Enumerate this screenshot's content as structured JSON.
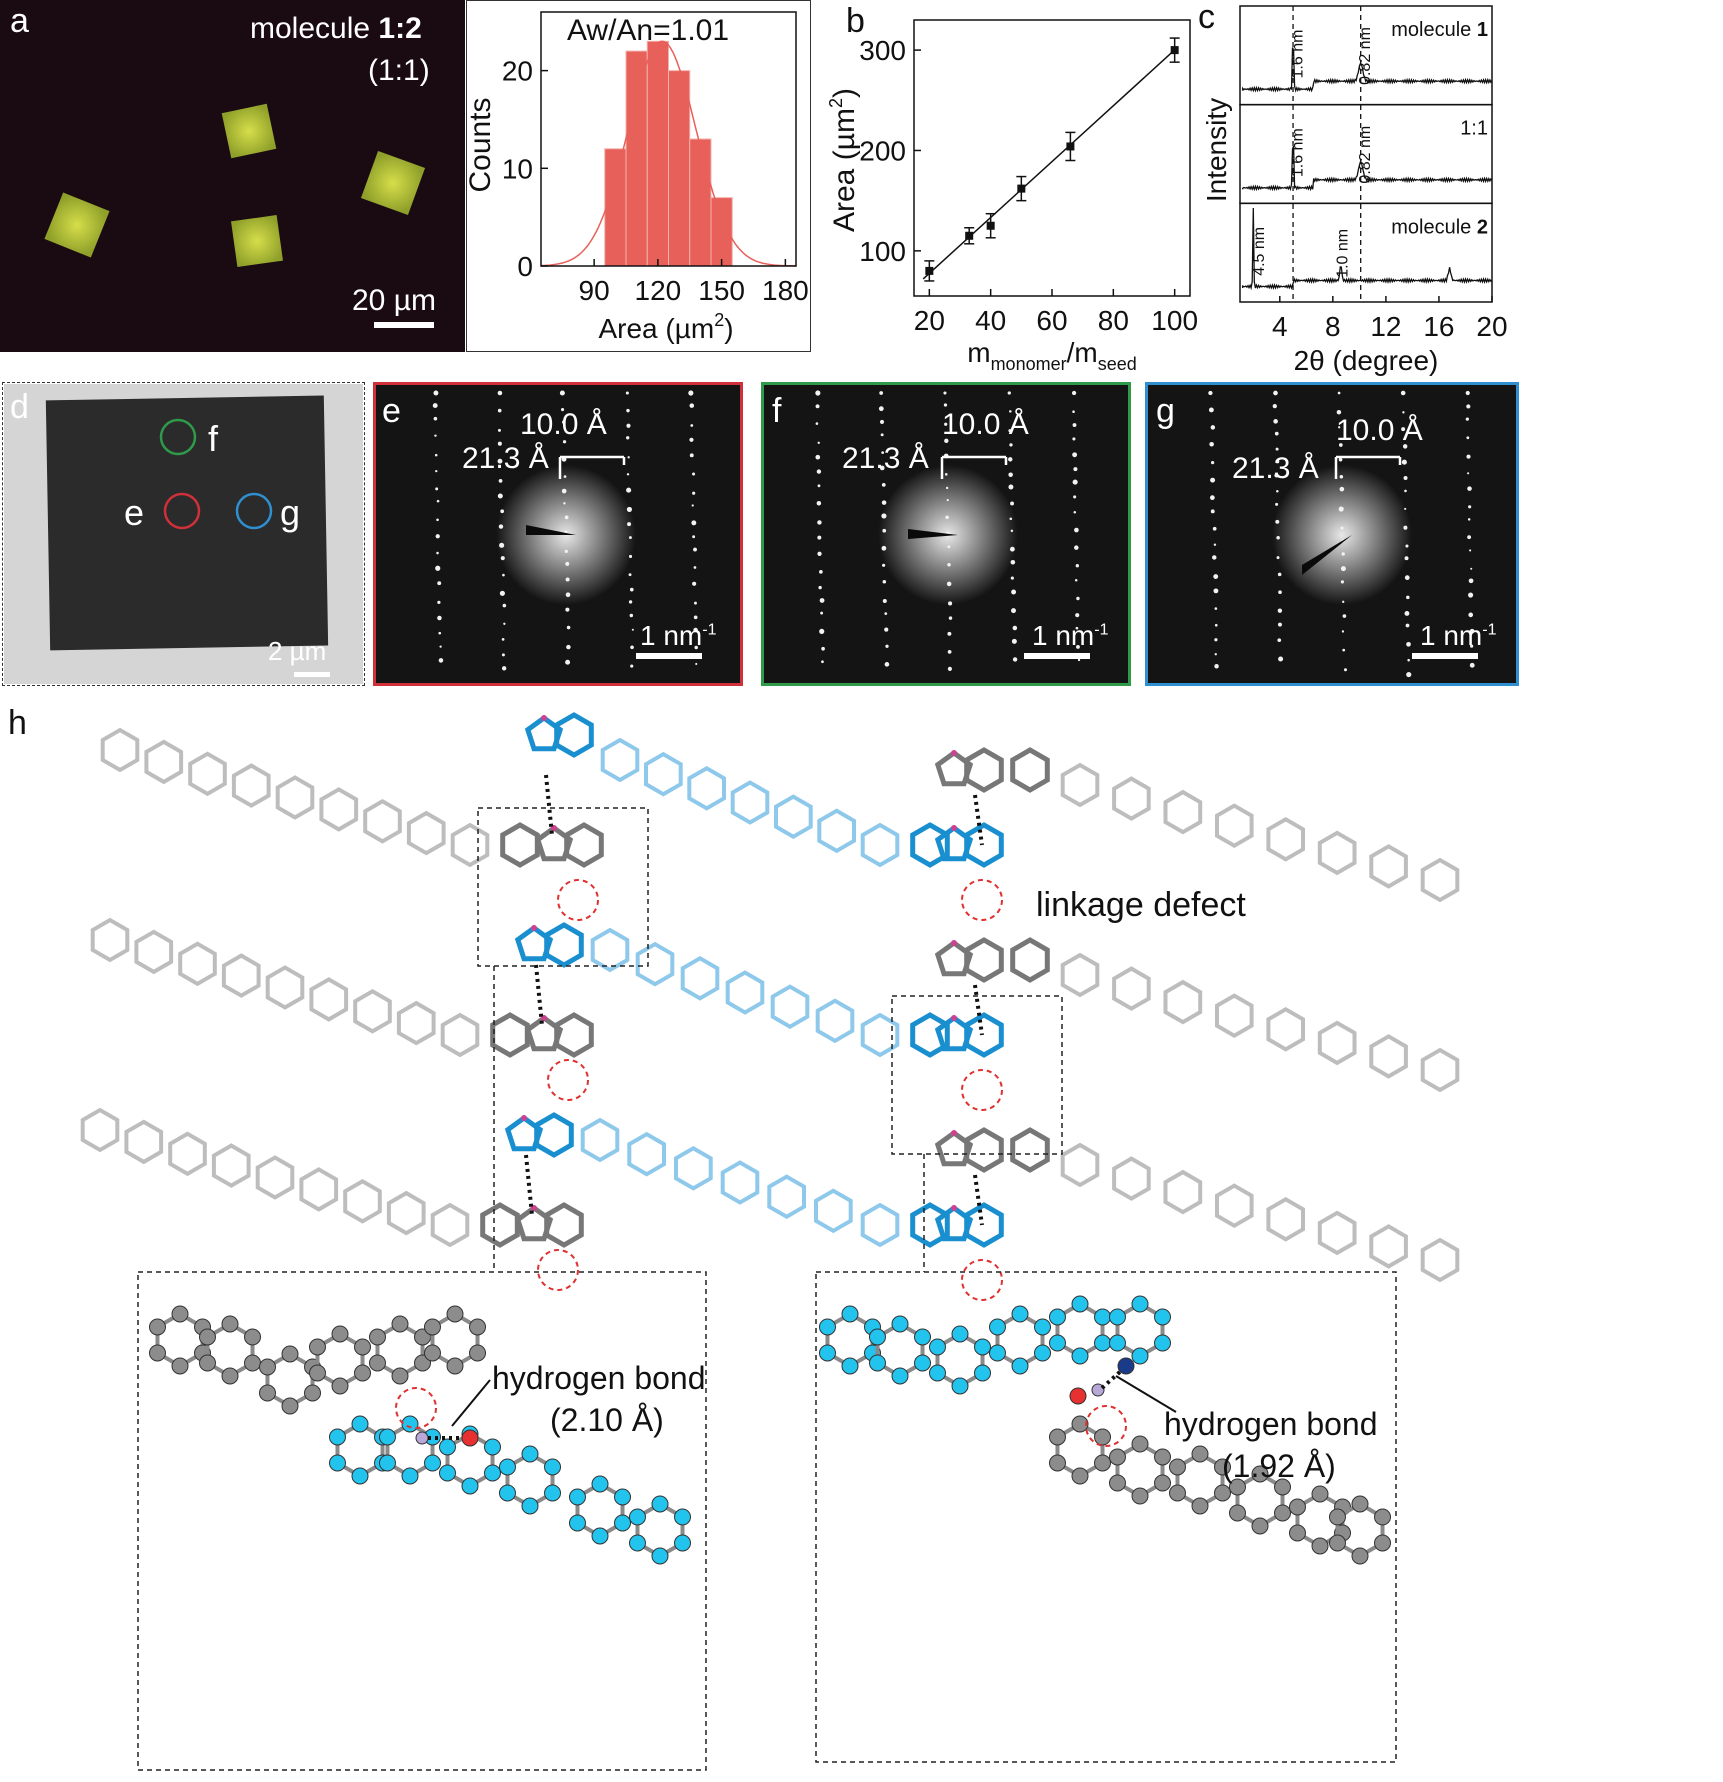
{
  "panels": {
    "a": {
      "letter": "a",
      "label_molecule": "molecule ",
      "label_ratio_bold": "1:2",
      "label_ratio": "(1:1)",
      "scalebar": "20 µm"
    },
    "b": {
      "letter": "b"
    },
    "c": {
      "letter": "c",
      "rows": [
        {
          "label": "molecule ",
          "label_bold": "1",
          "peaks": [
            "1.6 nm",
            "0.82 nm"
          ]
        },
        {
          "label": "1:1",
          "label_bold": "",
          "peaks": [
            "1.6 nm",
            "0.82 nm"
          ]
        },
        {
          "label": "molecule ",
          "label_bold": "2",
          "peaks": [
            "4.5 nm",
            "1.0 nm"
          ]
        }
      ]
    },
    "d": {
      "letter": "d",
      "scalebar": "2 µm",
      "circles": [
        "f",
        "e",
        "g"
      ]
    },
    "e": {
      "letter": "e",
      "d1": "10.0 Å",
      "d2": "21.3 Å",
      "scalebar": "1 nm",
      "scalebar_sup": "-1"
    },
    "f": {
      "letter": "f",
      "d1": "10.0 Å",
      "d2": "21.3 Å",
      "scalebar": "1 nm",
      "scalebar_sup": "-1"
    },
    "g": {
      "letter": "g",
      "d1": "10.0 Å",
      "d2": "21.3 Å",
      "scalebar": "1 nm",
      "scalebar_sup": "-1"
    },
    "h": {
      "letter": "h",
      "linkage_defect": "linkage defect",
      "hb_left_title": "hydrogen bond",
      "hb_left_value": "(2.10 Å)",
      "hb_right_title": "hydrogen bond",
      "hb_right_value": "(1.92 Å)"
    }
  },
  "colors": {
    "histogram_bar": "#e8605a",
    "histogram_fit": "#e8605a",
    "crystal": "#c8d23a",
    "border_e": "#d0303a",
    "border_f": "#2e9a4a",
    "border_g": "#2f8fd0",
    "blue_molecule": "#1a8fd0",
    "light_blue_molecule": "#8ec8ea",
    "gray_molecule": "#777777",
    "light_gray_molecule": "#bdbdbd"
  },
  "chart_data": [
    {
      "type": "bar",
      "panel": "a",
      "title": "Aw/An=1.01",
      "xlabel": "Area (µm",
      "xlabel_sup": "2",
      "xlabel_end": ")",
      "ylabel": "Counts",
      "bins": [
        100,
        110,
        120,
        130,
        140,
        150
      ],
      "bin_width": 10,
      "values": [
        12,
        22,
        23,
        20,
        13,
        7
      ],
      "xlim": [
        65,
        185
      ],
      "ylim": [
        0,
        26
      ],
      "xticks": [
        90,
        120,
        150,
        180
      ],
      "yticks": [
        0,
        10,
        20
      ],
      "fit": "gaussian"
    },
    {
      "type": "scatter",
      "panel": "b",
      "xlabel": "m",
      "xlabel_sub1": "monomer",
      "xlabel_mid": "/m",
      "xlabel_sub2": "seed",
      "ylabel": "Area (µm",
      "ylabel_sup": "2",
      "ylabel_end": ")",
      "x": [
        20,
        33,
        40,
        50,
        66,
        100
      ],
      "y": [
        80,
        115,
        125,
        162,
        204,
        300
      ],
      "yerr": [
        10,
        8,
        12,
        12,
        14,
        12
      ],
      "xlim": [
        15,
        105
      ],
      "ylim": [
        55,
        330
      ],
      "xticks": [
        20,
        40,
        60,
        80,
        100
      ],
      "yticks": [
        100,
        200,
        300
      ],
      "fit": "linear"
    },
    {
      "type": "line",
      "panel": "c",
      "xlabel": "2θ (degree)",
      "ylabel": "Intensity",
      "xlim": [
        1,
        20
      ],
      "xticks": [
        4,
        8,
        12,
        16,
        20
      ],
      "series": [
        {
          "name": "molecule 1",
          "peaks": [
            5.0,
            10.1
          ]
        },
        {
          "name": "1:1",
          "peaks": [
            5.0,
            10.1
          ]
        },
        {
          "name": "molecule 2",
          "peaks": [
            2.0,
            8.6,
            16.8
          ]
        }
      ]
    }
  ]
}
